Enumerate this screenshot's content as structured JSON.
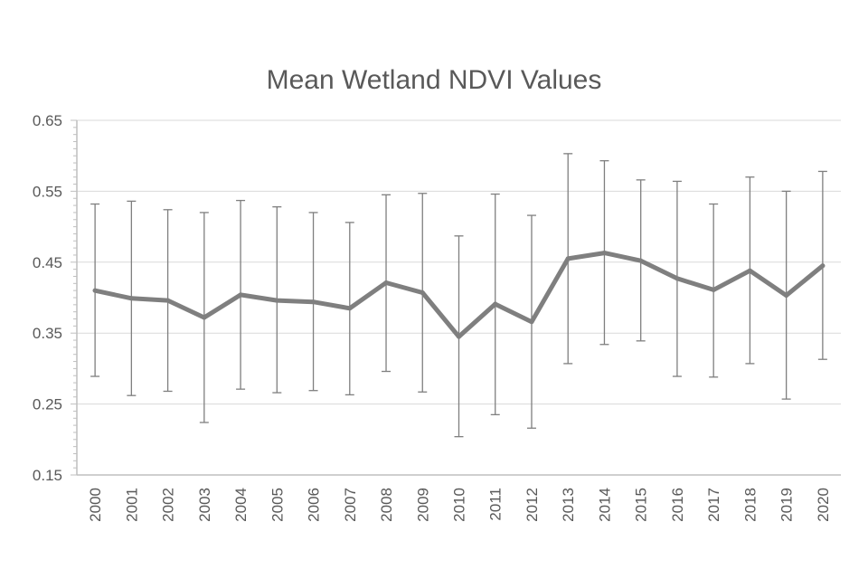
{
  "chart_data": {
    "type": "line",
    "title": "Mean Wetland NDVI Values",
    "xlabel": "",
    "ylabel": "",
    "ylim": [
      0.15,
      0.65
    ],
    "yticks": [
      "0.15",
      "0.25",
      "0.35",
      "0.45",
      "0.55",
      "0.65"
    ],
    "grid": "horizontal",
    "legend": "none",
    "categories": [
      "2000",
      "2001",
      "2002",
      "2003",
      "2004",
      "2005",
      "2006",
      "2007",
      "2008",
      "2009",
      "2010",
      "2011",
      "2012",
      "2013",
      "2014",
      "2015",
      "2016",
      "2017",
      "2018",
      "2019",
      "2020"
    ],
    "series": [
      {
        "values": [
          0.41,
          0.399,
          0.396,
          0.372,
          0.404,
          0.396,
          0.394,
          0.385,
          0.421,
          0.407,
          0.345,
          0.391,
          0.366,
          0.455,
          0.463,
          0.452,
          0.427,
          0.411,
          0.438,
          0.403,
          0.445
        ],
        "error_upper": [
          0.532,
          0.536,
          0.524,
          0.52,
          0.537,
          0.528,
          0.52,
          0.506,
          0.545,
          0.547,
          0.487,
          0.546,
          0.516,
          0.603,
          0.593,
          0.566,
          0.564,
          0.532,
          0.57,
          0.55,
          0.578
        ],
        "error_lower": [
          0.289,
          0.262,
          0.268,
          0.224,
          0.271,
          0.266,
          0.269,
          0.263,
          0.296,
          0.267,
          0.204,
          0.235,
          0.216,
          0.307,
          0.334,
          0.339,
          0.289,
          0.288,
          0.307,
          0.257,
          0.313
        ]
      }
    ],
    "colors": {
      "line": "#7f7f7f",
      "error_bar": "#7f7f7f",
      "grid": "#d9d9d9",
      "axis": "#bfbfbf",
      "text": "#595959"
    }
  }
}
